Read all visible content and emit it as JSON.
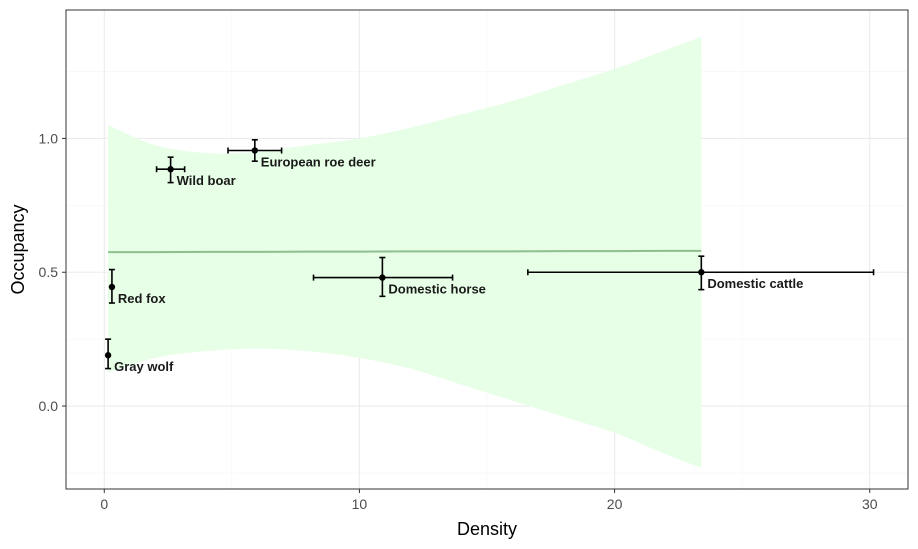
{
  "chart_data": {
    "type": "scatter",
    "xlabel": "Density",
    "ylabel": "Occupancy",
    "xlim": [
      -1.5,
      31.5
    ],
    "ylim": [
      -0.31,
      1.48
    ],
    "x_ticks": [
      0,
      10,
      20,
      30
    ],
    "y_ticks": [
      0.0,
      0.5,
      1.0
    ],
    "x_tick_labels": [
      "0",
      "10",
      "20",
      "30"
    ],
    "y_tick_labels": [
      "0.0",
      "0.5",
      "1.0"
    ],
    "grid": true,
    "legend": "none",
    "colors": {
      "point": "#000000",
      "fit_line": "#8fbf8f",
      "ribbon": "#e6ffe6",
      "grid_major": "#ebebeb",
      "grid_minor": "#f5f5f5",
      "panel_border": "#333333"
    },
    "points": [
      {
        "label": "Gray wolf",
        "x": 0.15,
        "y": 0.19,
        "xmin": 0.15,
        "xmax": 0.15,
        "ymin": 0.14,
        "ymax": 0.25
      },
      {
        "label": "Red fox",
        "x": 0.3,
        "y": 0.445,
        "xmin": 0.3,
        "xmax": 0.3,
        "ymin": 0.385,
        "ymax": 0.51
      },
      {
        "label": "Wild boar",
        "x": 2.6,
        "y": 0.885,
        "xmin": 2.05,
        "xmax": 3.15,
        "ymin": 0.835,
        "ymax": 0.93
      },
      {
        "label": "European roe deer",
        "x": 5.9,
        "y": 0.955,
        "xmin": 4.85,
        "xmax": 6.95,
        "ymin": 0.915,
        "ymax": 0.995
      },
      {
        "label": "Domestic horse",
        "x": 10.9,
        "y": 0.48,
        "xmin": 8.2,
        "xmax": 13.65,
        "ymin": 0.41,
        "ymax": 0.555
      },
      {
        "label": "Domestic cattle",
        "x": 23.4,
        "y": 0.5,
        "xmin": 16.6,
        "xmax": 30.15,
        "ymin": 0.435,
        "ymax": 0.56
      }
    ],
    "fit": {
      "x": [
        0.15,
        2,
        4,
        6,
        8,
        10,
        12,
        14,
        16,
        18,
        20,
        22,
        23.4
      ],
      "y": [
        0.575,
        0.575,
        0.576,
        0.576,
        0.577,
        0.577,
        0.578,
        0.578,
        0.578,
        0.579,
        0.579,
        0.58,
        0.58
      ],
      "upper": [
        1.05,
        0.975,
        0.945,
        0.95,
        0.975,
        1.0,
        1.04,
        1.09,
        1.14,
        1.2,
        1.26,
        1.33,
        1.38
      ],
      "lower": [
        0.125,
        0.18,
        0.205,
        0.215,
        0.205,
        0.18,
        0.14,
        0.08,
        0.02,
        -0.04,
        -0.1,
        -0.18,
        -0.23
      ]
    }
  }
}
